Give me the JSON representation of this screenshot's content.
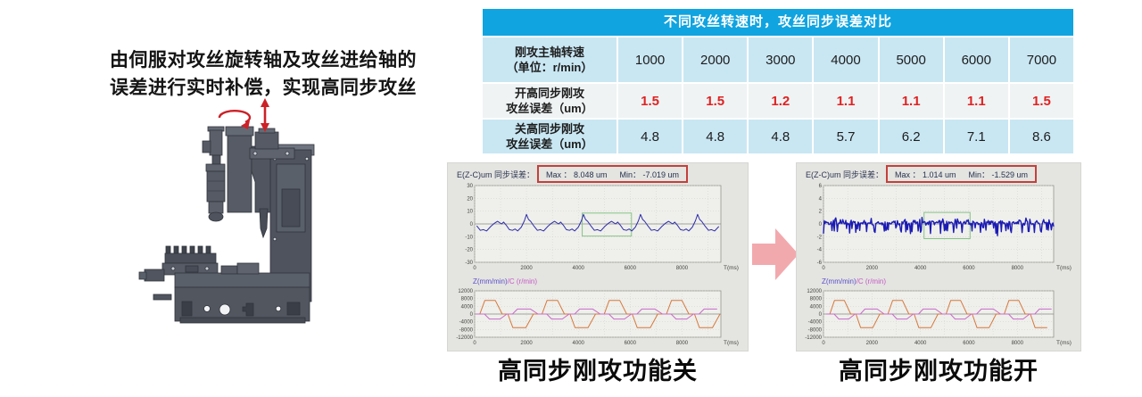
{
  "intro": {
    "line1": "由伺服对攻丝旋转轴及攻丝进给轴的",
    "line2": "误差进行实时补偿，实现高同步攻丝"
  },
  "colors": {
    "accent_red": "#CC2127",
    "table_header_blue": "#10A4E0",
    "table_row_blue": "#C9E7F3",
    "table_row_light": "#EFF3F4",
    "table_value_red": "#E02222",
    "chart_panel_gray": "#E4E4E1",
    "error_line_blue": "#2D2DA8",
    "feed_line_orange": "#D4793A",
    "rotation_line_magenta": "#C76BC7",
    "highlight_green": "#85C485",
    "stat_box_red": "#C4403A",
    "transition_arrow_pink": "#F2A9AE"
  },
  "table": {
    "title": "不同攻丝转速时，攻丝同步误差对比",
    "rows": [
      {
        "label1": "刚攻主轴转速",
        "label2": "（单位：r/min）",
        "values": [
          "1000",
          "2000",
          "3000",
          "4000",
          "5000",
          "6000",
          "7000"
        ],
        "highlight": false
      },
      {
        "label1": "开高同步刚攻",
        "label2": "攻丝误差（um）",
        "values": [
          "1.5",
          "1.5",
          "1.2",
          "1.1",
          "1.1",
          "1.1",
          "1.5"
        ],
        "highlight": true
      },
      {
        "label1": "关高同步刚攻",
        "label2": "攻丝误差（um）",
        "values": [
          "4.8",
          "4.8",
          "4.8",
          "5.7",
          "6.2",
          "7.1",
          "8.6"
        ],
        "highlight": false
      }
    ]
  },
  "chart_data": [
    {
      "id": "high_sync_off",
      "caption": "高同步刚攻功能关",
      "error_plot": {
        "type": "line",
        "title": "E(Z-C)um 同步误差：",
        "max_text": "Max ：  8.048 um",
        "min_text": "Min：   -7.019 um",
        "max_um": 8.048,
        "min_um": -7.019,
        "ylim": [
          -30,
          30
        ],
        "yticks": [
          30,
          20,
          10,
          0,
          -10,
          -20,
          -30
        ],
        "xlim": [
          0,
          9500
        ],
        "xticks": [
          0,
          2000,
          4000,
          6000,
          8000
        ],
        "xlabel": "T(ms)",
        "grid": true,
        "highlight_box": {
          "x0": 4150,
          "x1": 6050,
          "y0": -9.5,
          "y1": 8.5
        },
        "series": [
          {
            "name": "sync-error",
            "color": "#2D2DA8",
            "width": 1,
            "gen": {
              "kind": "pattern",
              "period": 2200,
              "phase": 1040,
              "keypoints": [
                [
                  0,
                  0
                ],
                [
                  80,
                  1.5
                ],
                [
                  180,
                  -1
                ],
                [
                  300,
                  -4.5
                ],
                [
                  420,
                  -5
                ],
                [
                  520,
                  -4
                ],
                [
                  620,
                  -5.5
                ],
                [
                  760,
                  -2.5
                ],
                [
                  880,
                  2.5
                ],
                [
                  960,
                  7.5
                ],
                [
                  1040,
                  3.5
                ],
                [
                  1120,
                  2
                ],
                [
                  1240,
                  -1.5
                ],
                [
                  1380,
                  -5
                ],
                [
                  1500,
                  -4.5
                ],
                [
                  1620,
                  -5.5
                ],
                [
                  1780,
                  -2
                ],
                [
                  1920,
                  0.5
                ],
                [
                  2040,
                  2
                ],
                [
                  2200,
                  0
                ]
              ]
            }
          }
        ]
      },
      "feed_plot": {
        "type": "line",
        "label_z": "Z(mm/min)",
        "label_c": "/C (r/min)",
        "ylim": [
          -12000,
          12000
        ],
        "yticks": [
          12000,
          8000,
          4000,
          0,
          -4000,
          -8000,
          -12000
        ],
        "xlim": [
          0,
          9500
        ],
        "xticks": [
          0,
          2000,
          4000,
          6000,
          8000
        ],
        "xlabel": "T(ms)",
        "grid": true,
        "series": [
          {
            "name": "z-feed",
            "color": "#D4793A",
            "width": 1,
            "gen": {
              "kind": "trapezoid",
              "period": 2400,
              "phase": 80,
              "amplitude": 7000
            }
          },
          {
            "name": "c-rotation",
            "color": "#C76BC7",
            "width": 1,
            "gen": {
              "kind": "trapezoid",
              "period": 2400,
              "phase": 260,
              "amplitude": -2600
            }
          }
        ]
      }
    },
    {
      "id": "high_sync_on",
      "caption": "高同步刚攻功能开",
      "error_plot": {
        "type": "line",
        "title": "E(Z-C)um 同步误差：",
        "max_text": "Max ：  1.014 um",
        "min_text": "Min：   -1.529 um",
        "max_um": 1.014,
        "min_um": -1.529,
        "ylim": [
          -6,
          6
        ],
        "yticks": [
          6,
          4,
          2,
          0,
          -2,
          -4,
          -6
        ],
        "xlim": [
          0,
          9500
        ],
        "xticks": [
          0,
          2000,
          4000,
          6000,
          8000
        ],
        "xlabel": "T(ms)",
        "grid": true,
        "highlight_box": {
          "x0": 4150,
          "x1": 6050,
          "y0": -2.3,
          "y1": 1.8
        },
        "series": [
          {
            "name": "sync-error",
            "color": "#1B1BB4",
            "width": 1.4,
            "gen": {
              "kind": "noise",
              "n": 300,
              "base": 0.18,
              "jitter": 0.55,
              "spike_down": -1.5,
              "spike_up": 0.45
            }
          }
        ]
      },
      "feed_plot": {
        "type": "line",
        "label_z": "Z(mm/min)",
        "label_c": "/C (r/min)",
        "ylim": [
          -12000,
          12000
        ],
        "yticks": [
          12000,
          8000,
          4000,
          0,
          -4000,
          -8000,
          -12000
        ],
        "xlim": [
          0,
          9500
        ],
        "xticks": [
          0,
          2000,
          4000,
          6000,
          8000
        ],
        "xlabel": "T(ms)",
        "grid": true,
        "series": [
          {
            "name": "z-feed",
            "color": "#D4793A",
            "width": 1,
            "gen": {
              "kind": "trapezoid",
              "period": 2400,
              "phase": 140,
              "amplitude": 7000
            }
          },
          {
            "name": "c-rotation",
            "color": "#C76BC7",
            "width": 1,
            "gen": {
              "kind": "trapezoid",
              "period": 2400,
              "phase": 320,
              "amplitude": -2600
            }
          }
        ]
      }
    }
  ]
}
